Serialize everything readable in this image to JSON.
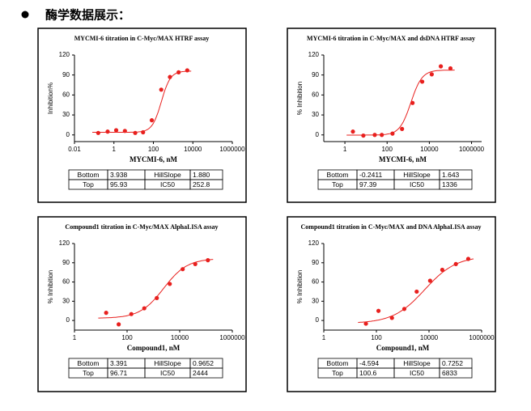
{
  "heading": "酶学数据展示：",
  "chart_data": [
    {
      "type": "scatter",
      "title": "MYCMI-6 titration in C-Myc/MAX HTRF assay",
      "x_label": "MYCMI-6, nM",
      "y_label": "Inhibition%",
      "log_x": true,
      "color": "#e8201e",
      "x": [
        0.16,
        0.48,
        1.3,
        3.6,
        12,
        30,
        83,
        250,
        690,
        1900,
        5200
      ],
      "values": [
        3,
        5,
        7,
        6,
        3,
        4,
        22,
        68,
        87,
        94,
        97
      ],
      "xlim": [
        0.01,
        1000000
      ],
      "xticks": [
        0.01,
        1,
        100,
        10000,
        1000000
      ],
      "ylim": [
        -10,
        120
      ],
      "yticks": [
        0,
        30,
        60,
        90,
        120
      ],
      "table": {
        "rows": [
          [
            "Bottom",
            "3.938",
            "HillSlope",
            "1.880"
          ],
          [
            "Top",
            "95.93",
            "IC50",
            "252.8"
          ]
        ]
      }
    },
    {
      "type": "scatter",
      "title": "MYCMI-6 titration in C-Myc/MAX and dsDNA HTRF assay",
      "x_label": "MYCMI-6, nM",
      "y_label": "% Inhibition",
      "log_x": true,
      "color": "#e8201e",
      "x": [
        2.4,
        7.5,
        26,
        56,
        180,
        510,
        1600,
        4600,
        13000,
        35000,
        100000
      ],
      "values": [
        5,
        -1,
        0,
        0,
        2,
        9,
        48,
        80,
        91,
        103,
        100
      ],
      "xlim": [
        0.1,
        3000000
      ],
      "xticks": [
        1,
        100,
        10000,
        1000000
      ],
      "ylim": [
        -10,
        120
      ],
      "yticks": [
        0,
        30,
        60,
        90,
        120
      ],
      "table": {
        "rows": [
          [
            "Bottom",
            "-0.2411",
            "HillSlope",
            "1.643"
          ],
          [
            "Top",
            "97.39",
            "IC50",
            "1336"
          ]
        ]
      }
    },
    {
      "type": "scatter",
      "title": "Compound1 titration in C-Myc/MAX AlphaLISA assay",
      "x_label": "Compound1, nM",
      "y_label": "% Inhibition",
      "log_x": true,
      "color": "#e8201e",
      "x": [
        16,
        48,
        145,
        450,
        1350,
        4200,
        13000,
        39000,
        118000
      ],
      "values": [
        12,
        -6,
        10,
        19,
        35,
        57,
        80,
        88,
        94
      ],
      "xlim": [
        1,
        1000000
      ],
      "xticks": [
        1,
        100,
        10000,
        1000000
      ],
      "ylim": [
        -15,
        120
      ],
      "yticks": [
        0,
        30,
        60,
        90,
        120
      ],
      "table": {
        "rows": [
          [
            "Bottom",
            "3.391",
            "HillSlope",
            "0.9652"
          ],
          [
            "Top",
            "96.71",
            "IC50",
            "2444"
          ]
        ]
      }
    },
    {
      "type": "scatter",
      "title": "Compound1 titration in C-Myc/MAX and DNA AlphaLISA assay",
      "x_label": "Compound1, nM",
      "y_label": "% Inhibition",
      "log_x": true,
      "color": "#e8201e",
      "x": [
        40,
        120,
        390,
        1150,
        3400,
        11000,
        32000,
        105000,
        310000
      ],
      "values": [
        -5,
        15,
        4,
        18,
        45,
        62,
        79,
        88,
        96
      ],
      "xlim": [
        1,
        1000000
      ],
      "xticks": [
        1,
        100,
        10000,
        1000000
      ],
      "ylim": [
        -15,
        120
      ],
      "yticks": [
        0,
        30,
        60,
        90,
        120
      ],
      "table": {
        "rows": [
          [
            "Bottom",
            "-4.594",
            "HillSlope",
            "0.7252"
          ],
          [
            "Top",
            "100.6",
            "IC50",
            "6833"
          ]
        ]
      }
    }
  ]
}
